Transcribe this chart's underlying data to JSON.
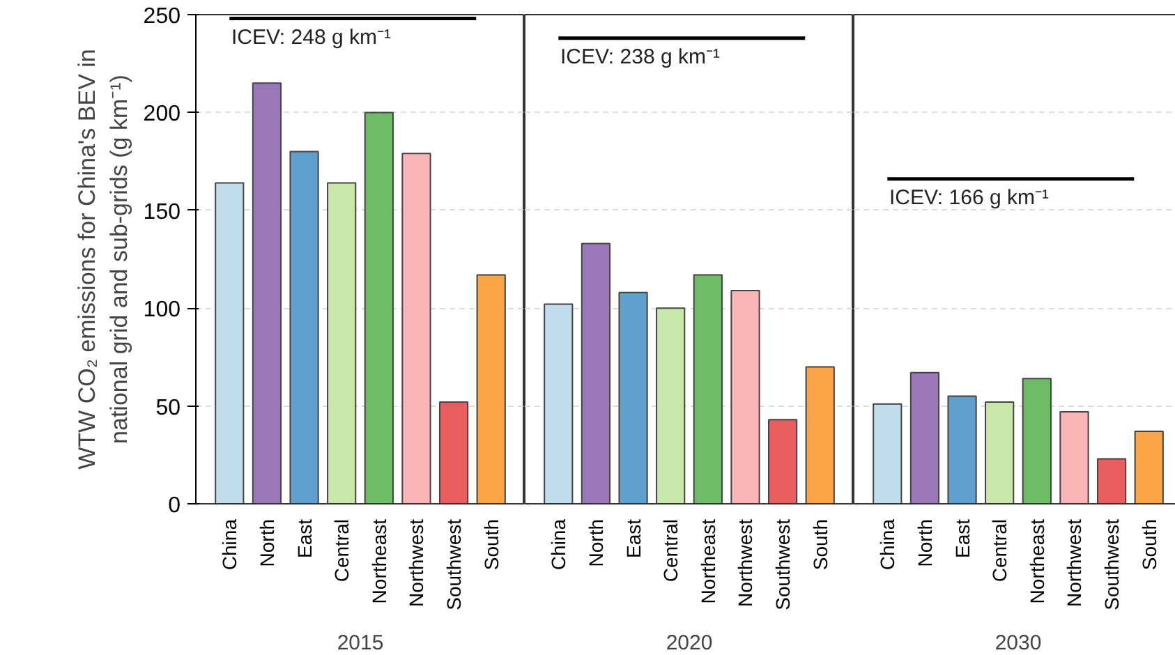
{
  "chart_data": [
    {
      "type": "bar",
      "xlabel": "2015",
      "ylabel": "WTW CO₂ emissions for China's BEV in\nnational grid and sub-grids (g km⁻¹)",
      "categories": [
        "China",
        "North",
        "East",
        "Central",
        "Northeast",
        "Northwest",
        "Southwest",
        "South"
      ],
      "values": [
        164,
        215,
        180,
        164,
        200,
        179,
        52,
        117
      ],
      "colors": [
        "#c1dcea",
        "#9a78b8",
        "#5f9fcb",
        "#c9e7a9",
        "#6fbb68",
        "#fbb5b7",
        "#e95d5f",
        "#fda448"
      ],
      "ylim": [
        0,
        250
      ],
      "yticks": [
        0,
        50,
        100,
        150,
        200,
        250
      ],
      "grid": "y",
      "ref_lines": [
        {
          "axis": "y",
          "value": 248,
          "label": "ICEV: 248 g km⁻¹"
        }
      ]
    },
    {
      "type": "bar",
      "xlabel": "2020",
      "categories": [
        "China",
        "North",
        "East",
        "Central",
        "Northeast",
        "Northwest",
        "Southwest",
        "South"
      ],
      "values": [
        102,
        133,
        108,
        100,
        117,
        109,
        43,
        70
      ],
      "colors": [
        "#c1dcea",
        "#9a78b8",
        "#5f9fcb",
        "#c9e7a9",
        "#6fbb68",
        "#fbb5b7",
        "#e95d5f",
        "#fda448"
      ],
      "ylim": [
        0,
        250
      ],
      "yticks": [
        0,
        50,
        100,
        150,
        200,
        250
      ],
      "grid": "y",
      "tick_labels": "x",
      "ref_lines": [
        {
          "axis": "y",
          "value": 238,
          "label": "ICEV: 238 g km⁻¹"
        }
      ]
    },
    {
      "type": "bar",
      "xlabel": "2030",
      "categories": [
        "China",
        "North",
        "East",
        "Central",
        "Northeast",
        "Northwest",
        "Southwest",
        "South"
      ],
      "values": [
        51,
        67,
        55,
        52,
        64,
        47,
        23,
        37
      ],
      "colors": [
        "#c1dcea",
        "#9a78b8",
        "#5f9fcb",
        "#c9e7a9",
        "#6fbb68",
        "#fbb5b7",
        "#e95d5f",
        "#fda448"
      ],
      "ylim": [
        0,
        250
      ],
      "yticks": [
        0,
        50,
        100,
        150,
        200,
        250
      ],
      "grid": "y",
      "tick_labels": "x",
      "ref_lines": [
        {
          "axis": "y",
          "value": 166,
          "label": "ICEV: 166 g km⁻¹"
        }
      ]
    }
  ]
}
